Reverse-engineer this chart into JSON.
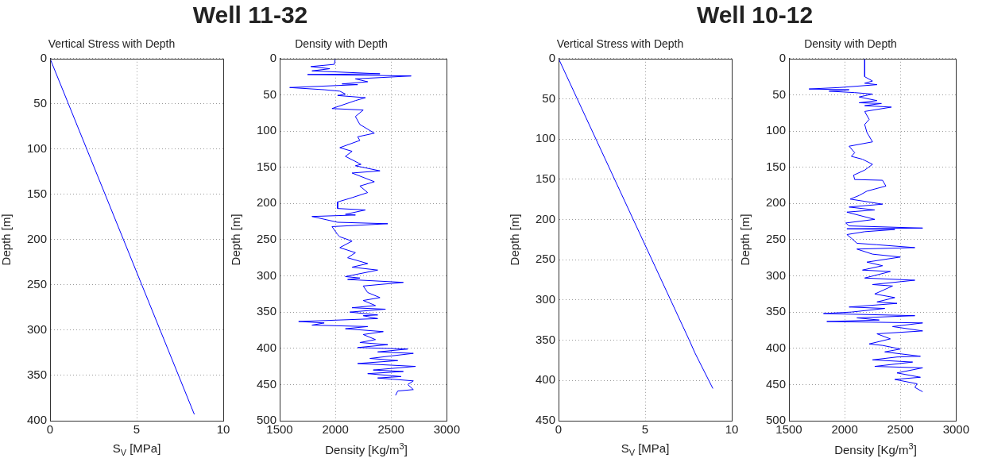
{
  "chart_data": [
    {
      "type": "line",
      "title": "Well 11-32",
      "subtitle": "Vertical Stress with Depth",
      "xlabel": "S$_{V}$ [MPa]",
      "ylabel": "Depth [m]",
      "xlim": [
        0,
        10
      ],
      "xticks": [
        0,
        5,
        10
      ],
      "ylim": [
        400,
        0
      ],
      "yticks": [
        0,
        50,
        100,
        150,
        200,
        250,
        300,
        350,
        400
      ],
      "grid": true,
      "series": [
        {
          "color": "#0000ff",
          "x": [
            0,
            8.33
          ],
          "values": [
            0,
            393
          ]
        }
      ]
    },
    {
      "type": "line",
      "title": "Density with Depth",
      "xlabel": "Density [Kg/m$^{3}$]",
      "ylabel": "Depth [m]",
      "xlim": [
        1500,
        3000
      ],
      "xticks": [
        1500,
        2000,
        2500,
        3000
      ],
      "ylim": [
        500,
        0
      ],
      "yticks": [
        0,
        50,
        100,
        150,
        200,
        250,
        300,
        350,
        400,
        450,
        500
      ],
      "grid": true,
      "series": [
        {
          "color": "#0000ff",
          "x": [
            2000,
            1990,
            1780,
            1950,
            1790,
            2400,
            1750,
            2680,
            2180,
            2290,
            2060,
            2200,
            1590,
            1900,
            2040,
            2090,
            2020,
            2270,
            2180,
            1970,
            2250,
            2180,
            2220,
            2350,
            2200,
            2220,
            2040,
            2150,
            2090,
            2230,
            2180,
            2400,
            2150,
            2350,
            2220,
            2290,
            2150,
            2020,
            2020,
            2270,
            2090,
            2180,
            1790,
            2020,
            2470,
            1970,
            2020,
            2040,
            2150,
            2040,
            2180,
            2110,
            2290,
            2150,
            2380,
            2090,
            2220,
            2110,
            2610,
            2250,
            2290,
            2400,
            2250,
            2360,
            2150,
            2450,
            2130,
            2380,
            2250,
            2380,
            1670,
            1900,
            1790,
            2290,
            2090,
            2430,
            2250,
            2360,
            2220,
            2470,
            2200,
            2650,
            2380,
            2700,
            2310,
            2560,
            2200,
            2720,
            2340,
            2610,
            2290,
            2590,
            2380,
            2700,
            2650,
            2700,
            2560,
            2540
          ],
          "values": [
            0,
            8,
            11,
            14,
            17,
            21,
            22,
            24,
            28,
            32,
            35,
            36,
            40,
            43,
            45,
            49,
            51,
            54,
            58,
            69,
            71,
            80,
            91,
            103,
            108,
            113,
            123,
            128,
            135,
            146,
            148,
            155,
            158,
            170,
            176,
            185,
            192,
            198,
            207,
            209,
            215,
            216,
            218,
            226,
            228,
            232,
            243,
            246,
            252,
            261,
            268,
            275,
            283,
            288,
            292,
            301,
            303,
            305,
            309,
            314,
            323,
            330,
            334,
            341,
            344,
            346,
            350,
            354,
            355,
            359,
            363,
            365,
            368,
            370,
            373,
            377,
            381,
            388,
            392,
            395,
            399,
            401,
            405,
            407,
            414,
            417,
            421,
            425,
            430,
            432,
            435,
            439,
            441,
            445,
            450,
            457,
            459,
            465
          ]
        }
      ]
    },
    {
      "type": "line",
      "title": "Well 10-12",
      "subtitle": "Vertical Stress with Depth",
      "xlabel": "S$_{V}$ [MPa]",
      "ylabel": "Depth [m]",
      "xlim": [
        0,
        10
      ],
      "xticks": [
        0,
        5,
        10
      ],
      "ylim": [
        450,
        0
      ],
      "yticks": [
        0,
        50,
        100,
        150,
        200,
        250,
        300,
        350,
        400,
        450
      ],
      "grid": true,
      "series": [
        {
          "color": "#0000ff",
          "x": [
            0,
            7.55,
            7.88,
            8.91
          ],
          "values": [
            0,
            350,
            366,
            410
          ]
        }
      ]
    },
    {
      "type": "line",
      "title": "Density with Depth",
      "xlabel": "Density [Kg/m$^{3}$]",
      "ylabel": "Depth [m]",
      "xlim": [
        1500,
        3000
      ],
      "xticks": [
        1500,
        2000,
        2500,
        3000
      ],
      "ylim": [
        500,
        0
      ],
      "yticks": [
        0,
        50,
        100,
        150,
        200,
        250,
        300,
        350,
        400,
        450,
        500
      ],
      "grid": true,
      "series": [
        {
          "color": "#0000ff",
          "x": [
            2180,
            2180,
            2250,
            2180,
            2290,
            1950,
            1680,
            2040,
            1860,
            2090,
            2250,
            2130,
            2290,
            2130,
            2330,
            2180,
            2420,
            2180,
            2220,
            2180,
            2200,
            2250,
            2040,
            2090,
            2060,
            2160,
            2250,
            2180,
            2080,
            2090,
            2340,
            2370,
            2200,
            2130,
            2050,
            2340,
            2040,
            2270,
            2020,
            2270,
            2010,
            2040,
            2700,
            2020,
            2450,
            2180,
            2020,
            2060,
            2110,
            2290,
            2630,
            2110,
            2250,
            2500,
            2200,
            2340,
            2160,
            2410,
            2180,
            2630,
            2250,
            2430,
            2270,
            2450,
            2290,
            2470,
            2040,
            2360,
            2060,
            1810,
            2630,
            2110,
            2310,
            1840,
            2700,
            2430,
            2700,
            2290,
            2410,
            2220,
            2340,
            2500,
            2360,
            2680,
            2470,
            2250,
            2610,
            2270,
            2700,
            2470,
            2680,
            2450,
            2650,
            2630,
            2700
          ],
          "values": [
            0,
            25,
            31,
            34,
            36,
            40,
            42,
            43,
            45,
            47,
            49,
            53,
            58,
            61,
            62,
            65,
            67,
            73,
            84,
            91,
            102,
            115,
            121,
            130,
            135,
            139,
            146,
            154,
            161,
            167,
            168,
            176,
            183,
            189,
            194,
            201,
            205,
            209,
            212,
            222,
            227,
            231,
            234,
            235,
            236,
            239,
            243,
            248,
            255,
            257,
            261,
            263,
            270,
            274,
            281,
            286,
            292,
            294,
            303,
            306,
            312,
            314,
            325,
            330,
            336,
            338,
            343,
            345,
            350,
            352,
            355,
            358,
            361,
            363,
            365,
            370,
            376,
            380,
            387,
            394,
            396,
            401,
            405,
            411,
            412,
            416,
            419,
            425,
            427,
            434,
            440,
            443,
            449,
            454,
            460
          ]
        }
      ]
    }
  ]
}
